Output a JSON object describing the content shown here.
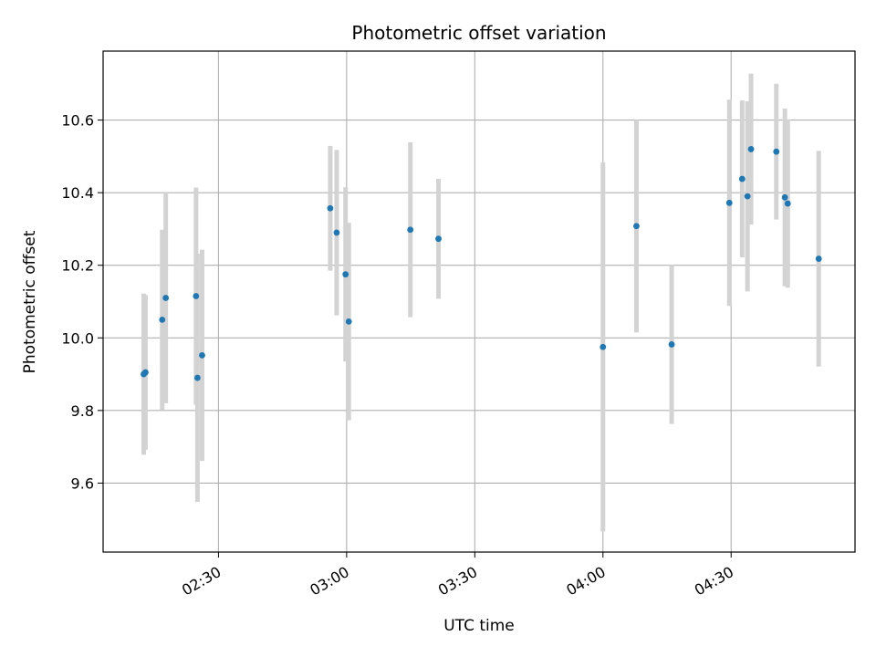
{
  "chart_data": {
    "type": "scatter",
    "title": "Photometric offset variation",
    "xlabel": "UTC time",
    "ylabel": "Photometric offset",
    "x_tick_labels": [
      "02:30",
      "03:00",
      "03:30",
      "04:00",
      "04:30"
    ],
    "x_ticks": [
      "02:30",
      "03:00",
      "03:30",
      "04:00",
      "04:30"
    ],
    "y_tick_labels": [
      "9.6",
      "9.8",
      "10.0",
      "10.2",
      "10.4",
      "10.6"
    ],
    "y_ticks": [
      9.6,
      9.8,
      10.0,
      10.2,
      10.4,
      10.6
    ],
    "xlim": [
      "02:03",
      "04:59"
    ],
    "ylim": [
      9.41,
      10.79
    ],
    "grid": true,
    "marker_color": "#1f77b4",
    "errorbar_color": "#d3d3d3",
    "points": [
      {
        "x": "02:12:30",
        "y": 9.9,
        "err": 0.222
      },
      {
        "x": "02:12:55",
        "y": 9.905,
        "err": 0.213
      },
      {
        "x": "02:16:50",
        "y": 10.05,
        "err": 0.248
      },
      {
        "x": "02:17:40",
        "y": 10.11,
        "err": 0.29
      },
      {
        "x": "02:24:45",
        "y": 10.115,
        "err": 0.299
      },
      {
        "x": "02:25:05",
        "y": 9.89,
        "err": 0.342
      },
      {
        "x": "02:26:10",
        "y": 9.952,
        "err": 0.291
      },
      {
        "x": "02:56:10",
        "y": 10.357,
        "err": 0.172
      },
      {
        "x": "02:57:40",
        "y": 10.29,
        "err": 0.228
      },
      {
        "x": "02:59:45",
        "y": 10.175,
        "err": 0.24
      },
      {
        "x": "03:00:30",
        "y": 10.045,
        "err": 0.272
      },
      {
        "x": "03:14:55",
        "y": 10.298,
        "err": 0.241
      },
      {
        "x": "03:21:30",
        "y": 10.273,
        "err": 0.165
      },
      {
        "x": "04:00:00",
        "y": 9.975,
        "err": 0.508
      },
      {
        "x": "04:07:50",
        "y": 10.308,
        "err": 0.293
      },
      {
        "x": "04:16:05",
        "y": 9.982,
        "err": 0.219
      },
      {
        "x": "04:29:35",
        "y": 10.372,
        "err": 0.284
      },
      {
        "x": "04:32:35",
        "y": 10.438,
        "err": 0.216
      },
      {
        "x": "04:33:50",
        "y": 10.39,
        "err": 0.262
      },
      {
        "x": "04:34:40",
        "y": 10.52,
        "err": 0.208
      },
      {
        "x": "04:40:35",
        "y": 10.513,
        "err": 0.187
      },
      {
        "x": "04:42:35",
        "y": 10.387,
        "err": 0.245
      },
      {
        "x": "04:43:15",
        "y": 10.37,
        "err": 0.232
      },
      {
        "x": "04:50:30",
        "y": 10.218,
        "err": 0.297
      }
    ]
  }
}
